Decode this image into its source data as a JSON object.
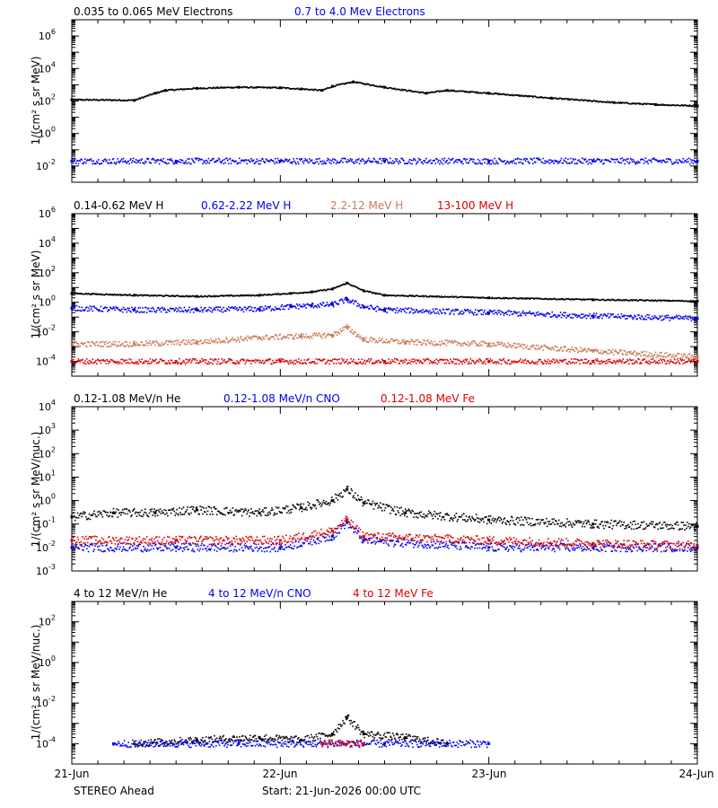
{
  "colors": {
    "black": "#000000",
    "blue": "#0000ee",
    "salmon": "#c87a5a",
    "red": "#dd0000"
  },
  "footer": {
    "left": "STEREO Ahead",
    "center": "Start: 21-Jun-2026 00:00 UTC"
  },
  "x_axis": {
    "ticks": [
      "21-Jun",
      "22-Jun",
      "23-Jun",
      "24-Jun"
    ],
    "range_days": [
      0,
      3
    ]
  },
  "chart_data": [
    {
      "type": "scatter",
      "ylabel": "1/(cm² s sr MeV)",
      "yscale": "log",
      "ylim": [
        0.001,
        10000000
      ],
      "ytick_exponents": [
        -2,
        0,
        2,
        4,
        6
      ],
      "series": [
        {
          "name": "0.035 to 0.065 MeV Electrons",
          "color": "black",
          "x": [
            0.0,
            0.3,
            0.4,
            0.45,
            0.6,
            0.8,
            1.0,
            1.1,
            1.2,
            1.25,
            1.35,
            1.5,
            1.7,
            1.8,
            2.0,
            2.3,
            2.6,
            2.8,
            3.0
          ],
          "y": [
            120,
            110,
            300,
            450,
            600,
            700,
            650,
            550,
            450,
            800,
            1500,
            700,
            300,
            450,
            300,
            150,
            80,
            60,
            50
          ]
        },
        {
          "name": "0.7 to 4.0 Mev Electrons",
          "color": "blue",
          "x": [
            0.0,
            0.5,
            1.0,
            1.5,
            2.0,
            2.5,
            3.0
          ],
          "y": [
            0.02,
            0.02,
            0.02,
            0.02,
            0.02,
            0.02,
            0.02
          ]
        }
      ]
    },
    {
      "type": "scatter",
      "ylabel": "1/(cm² s sr MeV)",
      "yscale": "log",
      "ylim": [
        1e-05,
        1000000
      ],
      "ytick_exponents": [
        -4,
        -2,
        0,
        2,
        4,
        6
      ],
      "series": [
        {
          "name": "0.14-0.62 MeV H",
          "color": "black",
          "x": [
            0.0,
            0.3,
            0.6,
            0.9,
            1.05,
            1.15,
            1.25,
            1.32,
            1.4,
            1.5,
            2.0,
            2.5,
            3.0
          ],
          "y": [
            4,
            3,
            2.5,
            3,
            4,
            5,
            8,
            20,
            6,
            3,
            2,
            1.5,
            1.2
          ]
        },
        {
          "name": "0.62-2.22 MeV H",
          "color": "blue",
          "x": [
            0.0,
            0.3,
            0.6,
            0.9,
            1.05,
            1.15,
            1.25,
            1.32,
            1.4,
            1.5,
            2.0,
            2.5,
            3.0
          ],
          "y": [
            0.4,
            0.3,
            0.3,
            0.35,
            0.5,
            0.6,
            0.7,
            1.5,
            0.5,
            0.3,
            0.2,
            0.12,
            0.08
          ]
        },
        {
          "name": "2.2-12 MeV H",
          "color": "salmon",
          "x": [
            0.0,
            0.3,
            0.6,
            0.9,
            1.1,
            1.25,
            1.32,
            1.4,
            1.6,
            2.0,
            2.5,
            3.0
          ],
          "y": [
            0.0015,
            0.0015,
            0.002,
            0.004,
            0.005,
            0.006,
            0.02,
            0.003,
            0.002,
            0.0015,
            0.0005,
            0.0002
          ]
        },
        {
          "name": "13-100 MeV H",
          "color": "red",
          "x": [
            0.0,
            0.5,
            1.0,
            1.5,
            2.0,
            2.5,
            3.0
          ],
          "y": [
            0.0001,
            0.0001,
            0.0001,
            0.0001,
            0.0001,
            0.0001,
            0.0001
          ]
        }
      ]
    },
    {
      "type": "scatter",
      "ylabel": "1/(cm² s sr MeV/nuc.)",
      "yscale": "log",
      "ylim": [
        0.001,
        10000
      ],
      "ytick_exponents": [
        -3,
        -2,
        -1,
        0,
        1,
        2,
        3,
        4
      ],
      "series": [
        {
          "name": "0.12-1.08 MeV/n He",
          "color": "black",
          "x": [
            0.0,
            0.2,
            0.4,
            0.6,
            0.9,
            1.1,
            1.25,
            1.32,
            1.4,
            1.6,
            2.0,
            2.5,
            3.0
          ],
          "y": [
            0.2,
            0.3,
            0.3,
            0.4,
            0.3,
            0.5,
            1.0,
            3.0,
            0.8,
            0.3,
            0.15,
            0.1,
            0.08
          ]
        },
        {
          "name": "0.12-1.08 MeV/n CNO",
          "color": "blue",
          "x": [
            0.0,
            0.5,
            1.0,
            1.25,
            1.32,
            1.4,
            2.0,
            2.5,
            3.0
          ],
          "y": [
            0.01,
            0.01,
            0.01,
            0.03,
            0.12,
            0.02,
            0.01,
            0.01,
            0.01
          ]
        },
        {
          "name": "0.12-1.08 MeV Fe",
          "color": "red",
          "x": [
            0.0,
            0.5,
            1.0,
            1.25,
            1.32,
            1.4,
            2.0,
            2.5,
            3.0
          ],
          "y": [
            0.02,
            0.02,
            0.02,
            0.05,
            0.15,
            0.03,
            0.02,
            0.015,
            0.012
          ]
        }
      ]
    },
    {
      "type": "scatter",
      "ylabel": "1/(cm² s sr MeV/nuc.)",
      "yscale": "log",
      "ylim": [
        1e-05,
        1000
      ],
      "ytick_exponents": [
        -4,
        -2,
        0,
        2
      ],
      "series": [
        {
          "name": "4 to 12 MeV/n He",
          "color": "black",
          "x": [
            0.3,
            0.6,
            0.9,
            1.1,
            1.25,
            1.32,
            1.4,
            1.6,
            1.8
          ],
          "y": [
            0.0001,
            0.00015,
            0.0002,
            0.00015,
            0.0003,
            0.002,
            0.0003,
            0.0002,
            0.0001
          ]
        },
        {
          "name": "4 to 12 MeV/n CNO",
          "color": "blue",
          "x": [
            0.2,
            0.8,
            1.2,
            1.5,
            2.0
          ],
          "y": [
            0.0001,
            0.0001,
            0.0001,
            0.0001,
            0.0001
          ]
        },
        {
          "name": "4 to 12 MeV Fe",
          "color": "red",
          "x": [
            1.2,
            1.3,
            1.4
          ],
          "y": [
            0.0001,
            0.0001,
            0.0001
          ]
        }
      ]
    }
  ]
}
